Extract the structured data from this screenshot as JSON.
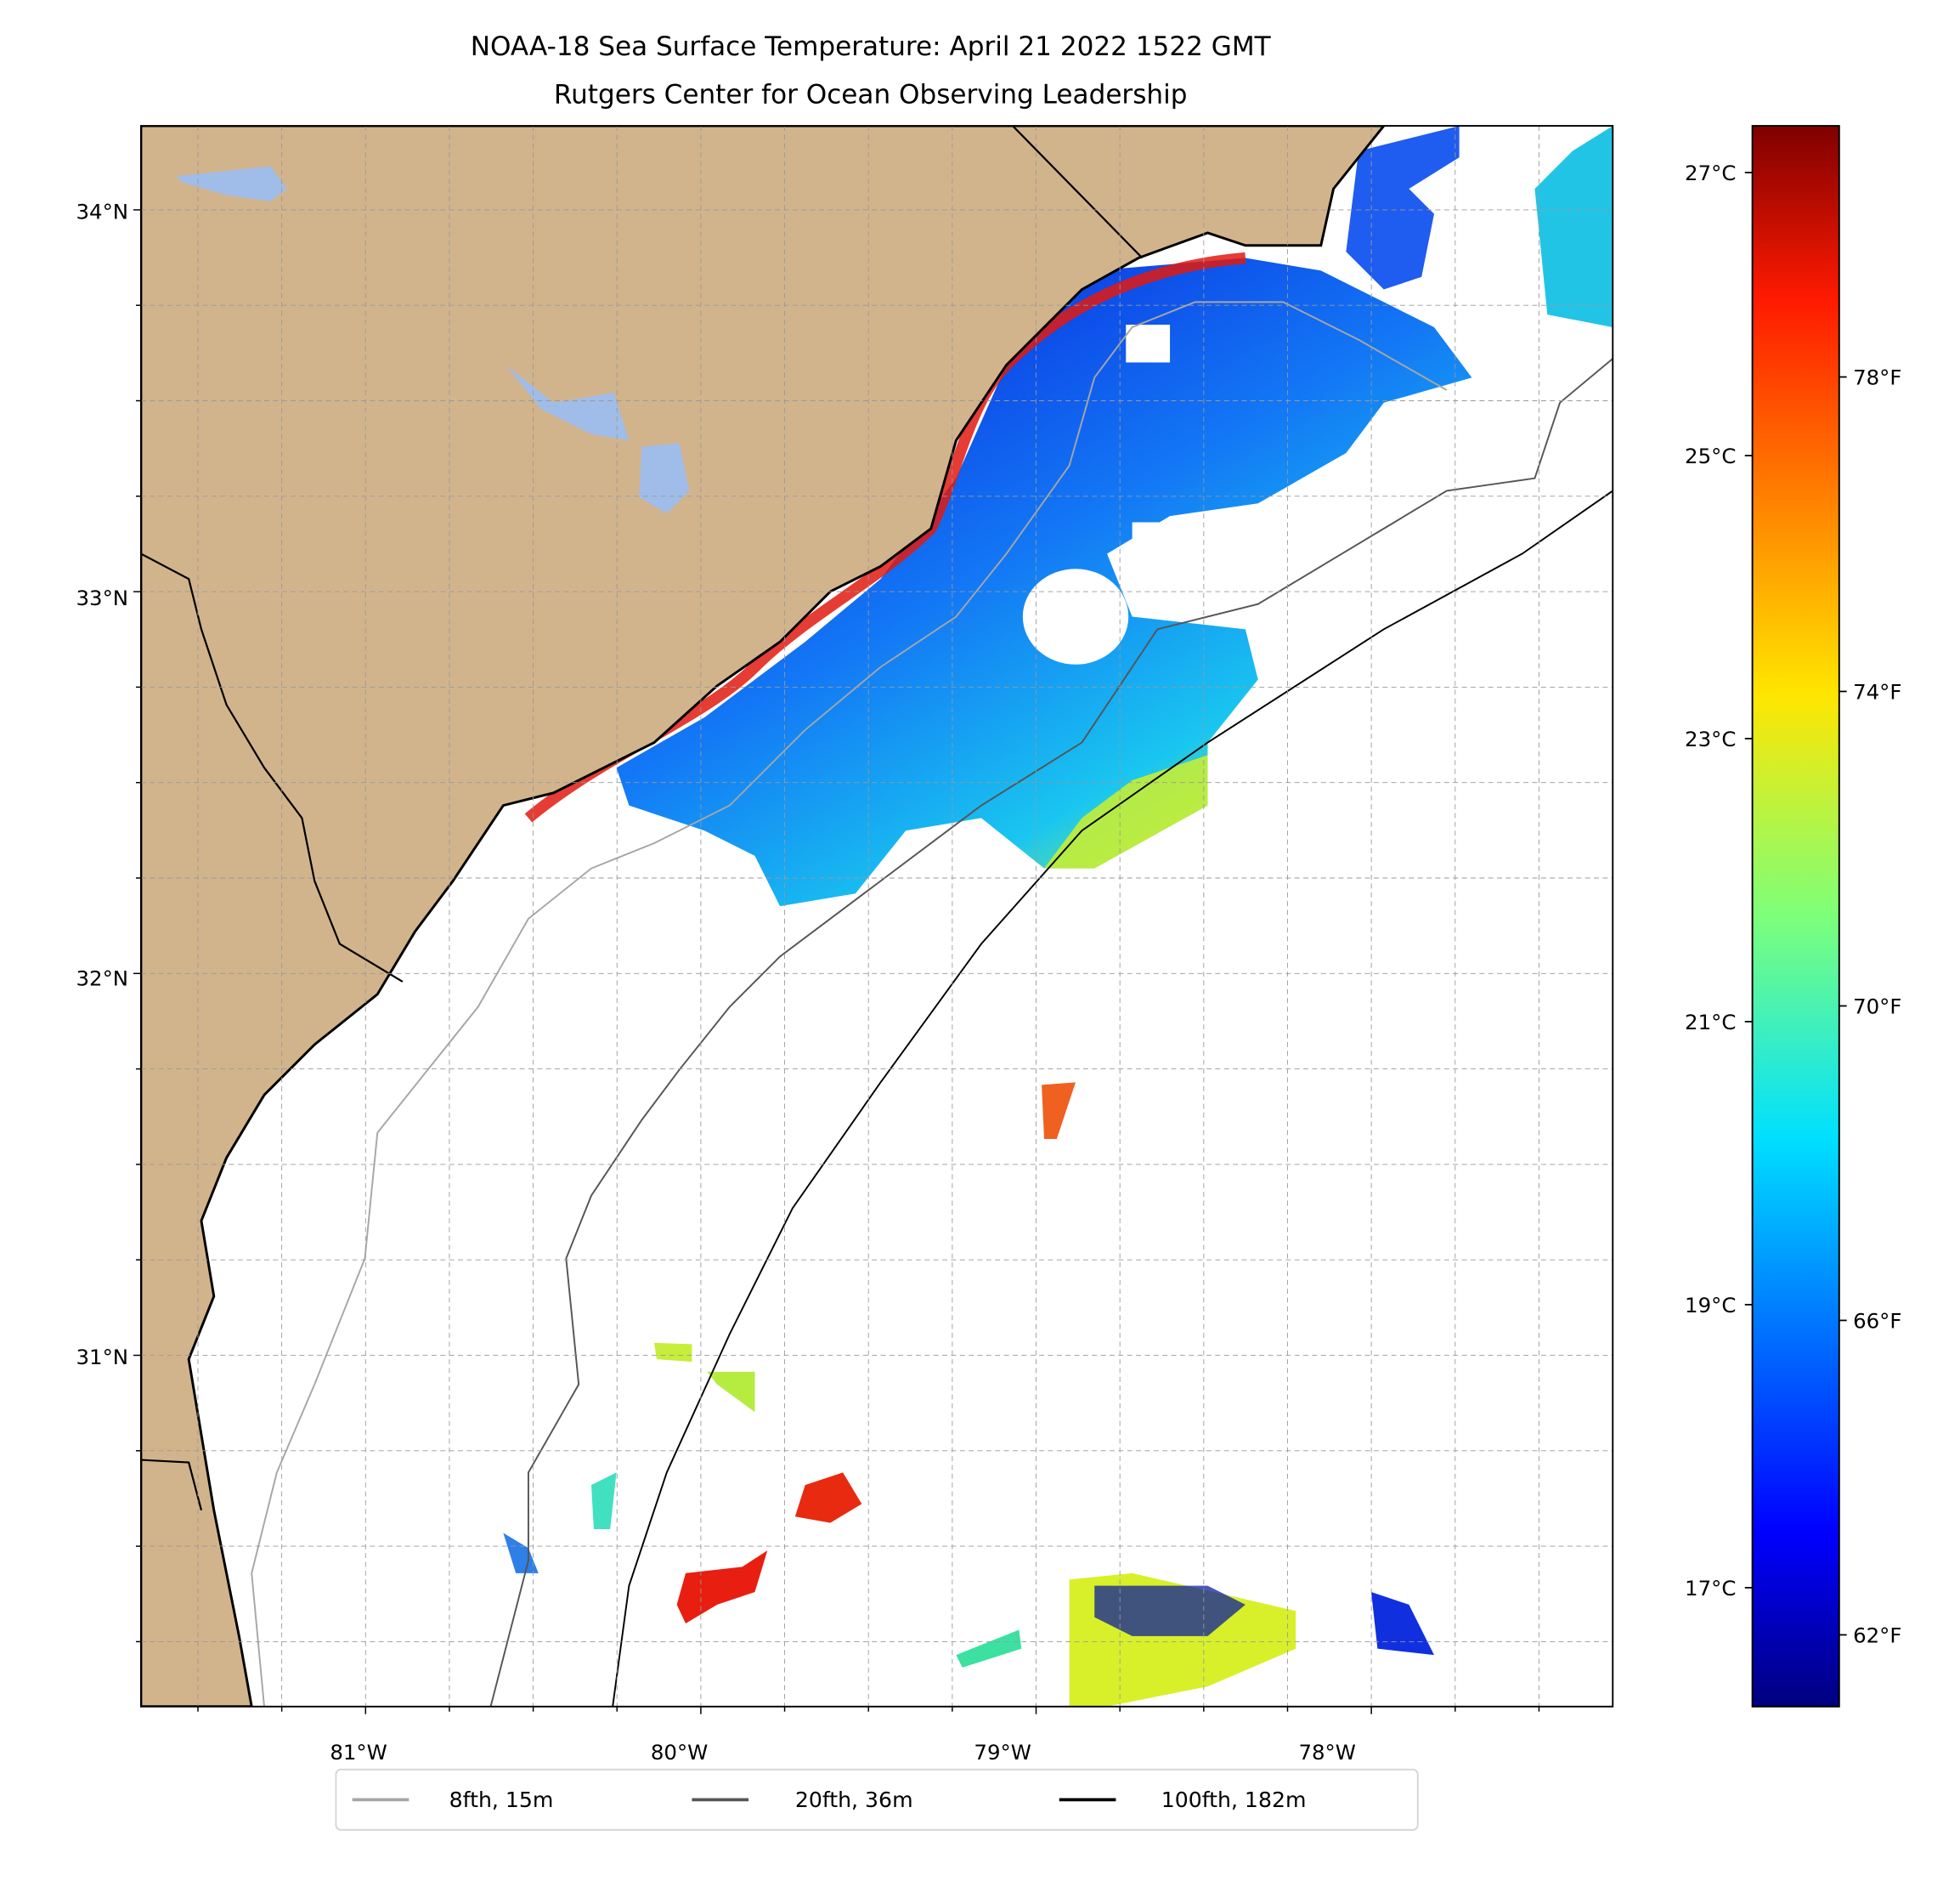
{
  "title_line1": "NOAA-18 Sea Surface Temperature: April 21 2022 1522 GMT",
  "title_line2": "Rutgers Center for Ocean Observing Leadership",
  "colors": {
    "land": "#d2b48c",
    "lake": "#a0bce8",
    "iso8": "#a6a6a6",
    "iso20": "#555555",
    "iso100": "#000000"
  },
  "chart_data": {
    "type": "heatmap",
    "title": "NOAA-18 Sea Surface Temperature: April 21 2022 1522 GMT",
    "subtitle": "Rutgers Center for Ocean Observing Leadership",
    "x_ticks": [
      {
        "value": -81,
        "label": "81°W"
      },
      {
        "value": -80,
        "label": "80°W"
      },
      {
        "value": -79,
        "label": "79°W"
      },
      {
        "value": -78,
        "label": "78°W"
      }
    ],
    "y_ticks": [
      {
        "value": 34,
        "label": "34°N"
      },
      {
        "value": 33,
        "label": "33°N"
      },
      {
        "value": 32,
        "label": "32°N"
      },
      {
        "value": 31,
        "label": "31°N"
      }
    ],
    "xlim": [
      -81.67,
      -77.28
    ],
    "ylim": [
      30.08,
      34.22
    ],
    "grid": true,
    "colormap": "jet",
    "colorbar": {
      "celsius_range": [
        16.16,
        27.33
      ],
      "celsius_ticks": [
        {
          "value": 27,
          "label": "27°C"
        },
        {
          "value": 25,
          "label": "25°C"
        },
        {
          "value": 23,
          "label": "23°C"
        },
        {
          "value": 21,
          "label": "21°C"
        },
        {
          "value": 19,
          "label": "19°C"
        },
        {
          "value": 17,
          "label": "17°C"
        }
      ],
      "fahrenheit_ticks": [
        {
          "value": 78,
          "label": "78°F"
        },
        {
          "value": 74,
          "label": "74°F"
        },
        {
          "value": 70,
          "label": "70°F"
        },
        {
          "value": 66,
          "label": "66°F"
        },
        {
          "value": 62,
          "label": "62°F"
        }
      ]
    },
    "legend": {
      "placement": "bottom-center",
      "entries": [
        {
          "label": "8fth, 15m",
          "color": "#a6a6a6"
        },
        {
          "label": "20fth, 36m",
          "color": "#555555"
        },
        {
          "label": "100fth, 182m",
          "color": "#000000"
        }
      ]
    }
  }
}
